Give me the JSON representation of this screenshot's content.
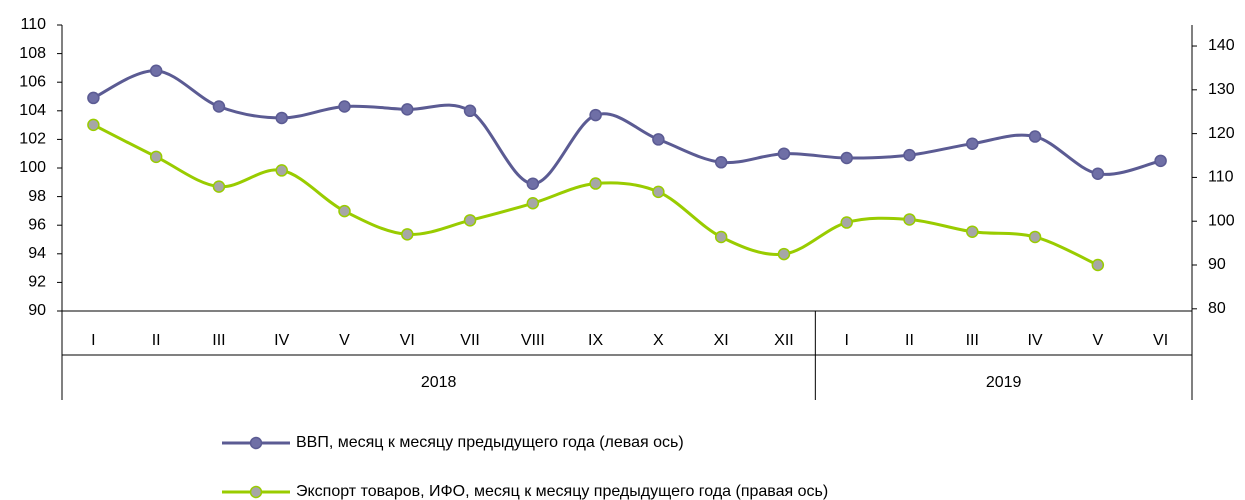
{
  "chart_data": {
    "type": "line",
    "categories": [
      "I",
      "II",
      "III",
      "IV",
      "V",
      "VI",
      "VII",
      "VIII",
      "IX",
      "X",
      "XI",
      "XII",
      "I",
      "II",
      "III",
      "IV",
      "V",
      "VI"
    ],
    "x_groups": [
      "2018",
      "2019"
    ],
    "ylim": [
      90,
      110
    ],
    "yticks": [
      90,
      92,
      94,
      96,
      98,
      100,
      102,
      104,
      106,
      108,
      110
    ],
    "y2lim": [
      79.5,
      144.8
    ],
    "y2ticks": [
      80,
      90,
      100,
      110,
      120,
      130,
      140
    ],
    "legend": "bottom",
    "series": [
      {
        "name": "ВВП, месяц к месяцу предыдущего года (левая ось)",
        "color": "#5b5b93",
        "marker_color": "#6f6fa6",
        "values": [
          104.9,
          106.8,
          104.3,
          103.5,
          104.3,
          104.1,
          104.0,
          98.9,
          103.7,
          102.0,
          100.4,
          101.0,
          100.7,
          100.9,
          101.7,
          102.2,
          99.6,
          100.5
        ]
      },
      {
        "name": "Экспорт товаров, ИФО, месяц к месяцу предыдущего года (правая ось)",
        "color": "#99cc00",
        "marker_color": "#a6a6a6",
        "axis": "y2",
        "values": [
          122.0,
          114.7,
          107.9,
          111.6,
          102.3,
          97.0,
          100.2,
          104.1,
          108.6,
          106.7,
          96.4,
          92.5,
          99.7,
          100.4,
          97.6,
          96.4,
          90.0,
          null
        ]
      }
    ]
  }
}
